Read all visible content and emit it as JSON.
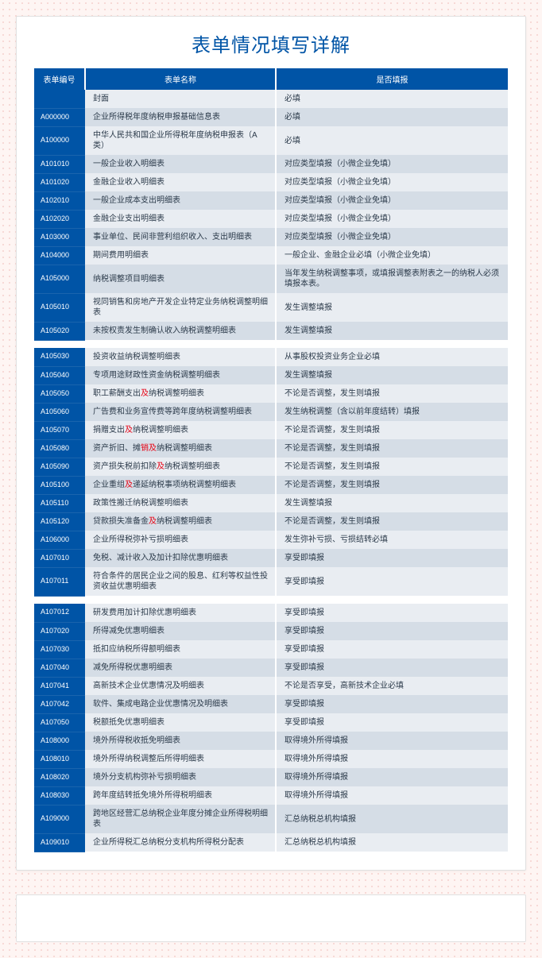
{
  "title": "表单情况填写详解",
  "headers": {
    "code": "表单编号",
    "name": "表单名称",
    "status": "是否填报"
  },
  "colors": {
    "accent": "#0054a6",
    "red": "#e60012",
    "row_a": "#e9edf2",
    "row_b": "#d5dde6",
    "page_bg": "#fef5f3",
    "dot": "#f5d0cc"
  },
  "sections": [
    {
      "rows": [
        {
          "code": "",
          "name": "封面",
          "status": "必填",
          "red": false
        },
        {
          "code": "A000000",
          "name": "企业所得税年度纳税申报基础信息表",
          "status": "必填",
          "red": false
        },
        {
          "code": "A100000",
          "name": "中华人民共和国企业所得税年度纳税申报表（A类）",
          "status": "必填",
          "red": false
        },
        {
          "code": "A101010",
          "name": "一般企业收入明细表",
          "status": "对应类型填报（小微企业免填）",
          "red": true
        },
        {
          "code": "A101020",
          "name": "金融企业收入明细表",
          "status": "对应类型填报（小微企业免填）",
          "red": true
        },
        {
          "code": "A102010",
          "name": "一般企业成本支出明细表",
          "status": "对应类型填报（小微企业免填）",
          "red": true
        },
        {
          "code": "A102020",
          "name": "金融企业支出明细表",
          "status": "对应类型填报（小微企业免填）",
          "red": true
        },
        {
          "code": "A103000",
          "name": "事业单位、民间非营利组织收入、支出明细表",
          "status": "对应类型填报（小微企业免填）",
          "red": true
        },
        {
          "code": "A104000",
          "name": "期间费用明细表",
          "status": "一般企业、金融企业必填（小微企业免填）",
          "red": true
        },
        {
          "code": "A105000",
          "name": "纳税调整项目明细表",
          "status": "当年发生纳税调整事项，或填报调整表附表之一的纳税人必须填报本表。",
          "red": false
        },
        {
          "code": "A105010",
          "name": "视同销售和房地产开发企业特定业务纳税调整明细表",
          "status": "发生调整填报",
          "red": false
        },
        {
          "code": "A105020",
          "name": "未按权责发生制确认收入纳税调整明细表",
          "status": "发生调整填报",
          "red": false
        }
      ]
    },
    {
      "rows": [
        {
          "code": "A105030",
          "name": "投资收益纳税调整明细表",
          "status": "从事股权投资业务企业必填",
          "red": true
        },
        {
          "code": "A105040",
          "name": "专项用途财政性资金纳税调整明细表",
          "status": "发生调整填报",
          "red": false
        },
        {
          "code": "A105050",
          "name_html": "职工薪酬支出<span class='red'>及</span>纳税调整明细表",
          "status": "不论是否调整，发生则填报",
          "red": true
        },
        {
          "code": "A105060",
          "name": "广告费和业务宣传费等跨年度纳税调整明细表",
          "status": "发生纳税调整（含以前年度结转）填报",
          "red": false
        },
        {
          "code": "A105070",
          "name_html": "捐赠支出<span class='red'>及</span>纳税调整明细表",
          "status": "不论是否调整，发生则填报",
          "red": true
        },
        {
          "code": "A105080",
          "name_html": "资产折旧、摊<span class='red'>销及</span>纳税调整明细表",
          "status": "不论是否调整，发生则填报",
          "red": true
        },
        {
          "code": "A105090",
          "name_html": "资产损失税前扣除<span class='red'>及</span>纳税调整明细表",
          "status": "不论是否调整，发生则填报",
          "red": true
        },
        {
          "code": "A105100",
          "name_html": "企业重组<span class='red'>及</span>递延纳税事项纳税调整明细表",
          "status": "不论是否调整，发生则填报",
          "red": true
        },
        {
          "code": "A105110",
          "name": "政策性搬迁纳税调整明细表",
          "status": "发生调整填报",
          "red": false
        },
        {
          "code": "A105120",
          "name_html": "贷款损失准备金<span class='red'>及</span>纳税调整明细表",
          "status": "不论是否调整，发生则填报",
          "red": true
        },
        {
          "code": "A106000",
          "name": "企业所得税弥补亏损明细表",
          "status": "发生弥补亏损、亏损结转必填",
          "red": false
        },
        {
          "code": "A107010",
          "name": "免税、减计收入及加计扣除优惠明细表",
          "status": "享受即填报",
          "red": false
        },
        {
          "code": "A107011",
          "name": "符合条件的居民企业之间的股息、红利等权益性投资收益优惠明细表",
          "status": "享受即填报",
          "red": false
        }
      ]
    },
    {
      "rows": [
        {
          "code": "A107012",
          "name": "研发费用加计扣除优惠明细表",
          "status": "享受即填报",
          "red": false
        },
        {
          "code": "A107020",
          "name": "所得减免优惠明细表",
          "status": "享受即填报",
          "red": false
        },
        {
          "code": "A107030",
          "name": "抵扣应纳税所得额明细表",
          "status": "享受即填报",
          "red": false
        },
        {
          "code": "A107040",
          "name": "减免所得税优惠明细表",
          "status": "享受即填报",
          "red": false
        },
        {
          "code": "A107041",
          "name": "高新技术企业优惠情况及明细表",
          "status": "不论是否享受，高新技术企业必填",
          "red": true
        },
        {
          "code": "A107042",
          "name": "软件、集成电路企业优惠情况及明细表",
          "status": "享受即填报",
          "red": false
        },
        {
          "code": "A107050",
          "name": "税额抵免优惠明细表",
          "status": "享受即填报",
          "red": false
        },
        {
          "code": "A108000",
          "name": "境外所得税收抵免明细表",
          "status": "取得境外所得填报",
          "red": false
        },
        {
          "code": "A108010",
          "name": "境外所得纳税调整后所得明细表",
          "status": "取得境外所得填报",
          "red": false
        },
        {
          "code": "A108020",
          "name": "境外分支机构弥补亏损明细表",
          "status": "取得境外所得填报",
          "red": false
        },
        {
          "code": "A108030",
          "name": "跨年度结转抵免境外所得税明细表",
          "status": "取得境外所得填报",
          "red": false
        },
        {
          "code": "A109000",
          "name": "跨地区经营汇总纳税企业年度分摊企业所得税明细表",
          "status": "汇总纳税总机构填报",
          "red": false
        },
        {
          "code": "A109010",
          "name": "企业所得税汇总纳税分支机构所得税分配表",
          "status": "汇总纳税总机构填报",
          "red": false
        }
      ]
    }
  ]
}
